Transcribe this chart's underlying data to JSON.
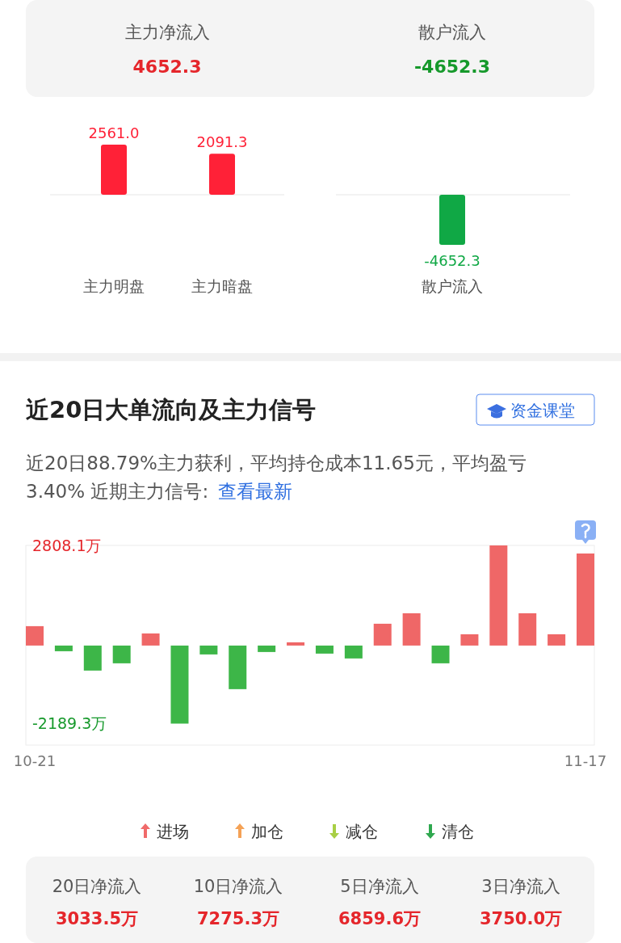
{
  "chart_data": [
    {
      "type": "other",
      "categories": [
        "主力净流入",
        "散户流入"
      ],
      "values": [
        4652.3,
        -4652.3
      ],
      "value_labels": [
        "4652.3",
        "-4652.3"
      ]
    },
    {
      "type": "bar",
      "categories": [
        "主力明盘",
        "主力暗盘"
      ],
      "values": [
        2561.0,
        2091.3
      ],
      "value_labels": [
        "2561.0",
        "2091.3"
      ],
      "colors": [
        "#ff2137",
        "#ff2137"
      ]
    },
    {
      "type": "bar",
      "categories": [
        "散户流入"
      ],
      "values": [
        -4652.3
      ],
      "value_labels": [
        "-4652.3"
      ],
      "colors": [
        "#10a845"
      ]
    },
    {
      "type": "bar",
      "title": "近20日大单流向及主力信号",
      "subtitle": "近20日88.79%主力获利，平均持仓成本11.65元，平均盈亏 3.40% 近期主力信号:",
      "annotations": [
        "资金课堂",
        "查看最新",
        "进场",
        "加仓",
        "减仓",
        "清仓"
      ],
      "categories": [
        "10-21",
        null,
        null,
        null,
        null,
        null,
        null,
        null,
        null,
        null,
        null,
        null,
        null,
        null,
        null,
        null,
        null,
        null,
        null,
        "11-17"
      ],
      "values": [
        544,
        -159,
        -702,
        -498,
        340,
        -2189.3,
        -249,
        -1223,
        -181,
        91,
        -226,
        -362,
        612,
        906,
        -498,
        317,
        2808.1,
        906,
        317,
        2582
      ],
      "colors": [
        "#ef6767",
        "#3db648",
        "#3db648",
        "#3db648",
        "#ef6767",
        "#3db648",
        "#3db648",
        "#3db648",
        "#3db648",
        "#ef6767",
        "#3db648",
        "#3db648",
        "#ef6767",
        "#ef6767",
        "#3db648",
        "#ef6767",
        "#ef6767",
        "#ef6767",
        "#ef6767",
        "#ef6767"
      ],
      "ylim": [
        -2790,
        2808.1
      ],
      "yticks": [
        {
          "value": 2808.1,
          "label": "2808.1万"
        },
        {
          "value": -2189.3,
          "label": "-2189.3万"
        }
      ]
    },
    {
      "type": "other",
      "categories": [
        "20日净流入",
        "10日净流入",
        "5日净流入",
        "3日净流入"
      ],
      "values": [
        3033.5,
        7275.3,
        6859.6,
        3750.0
      ],
      "value_labels": [
        "3033.5万",
        "7275.3万",
        "6859.6万",
        "3750.0万"
      ]
    }
  ]
}
